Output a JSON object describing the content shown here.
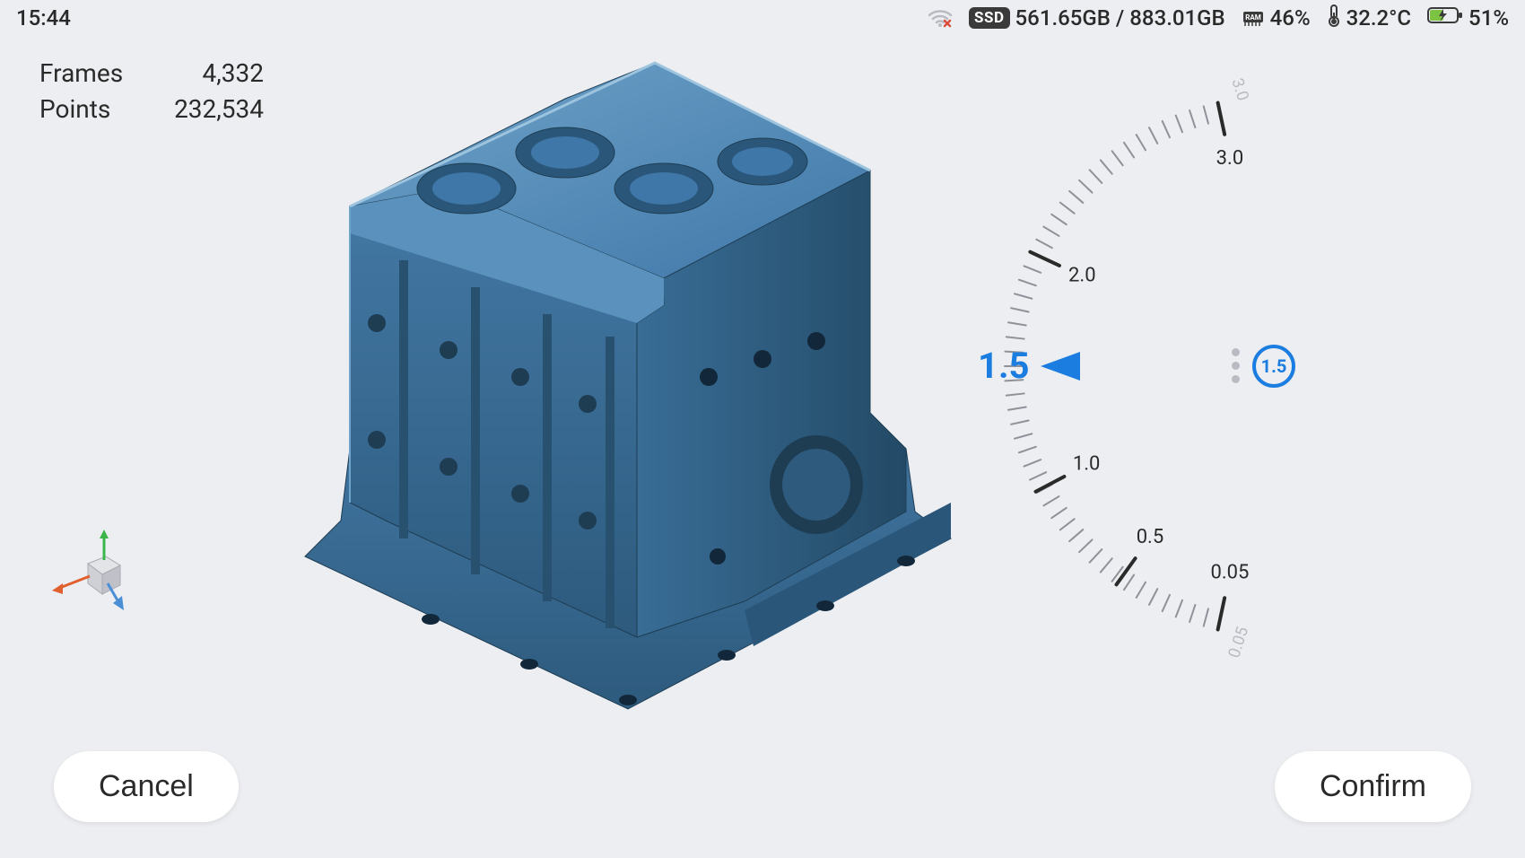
{
  "status_bar": {
    "time": "15:44",
    "wifi": {
      "connected": false,
      "icon": "wifi-off"
    },
    "ssd": {
      "used": "561.65GB",
      "total": "883.01GB",
      "separator": " / "
    },
    "ram": {
      "percent": "46%"
    },
    "temperature": "32.2°C",
    "battery": {
      "percent": "51%",
      "charging": true,
      "fill_color": "#7cc243"
    }
  },
  "scan_stats": {
    "frames": {
      "label": "Frames",
      "value": "4,332"
    },
    "points": {
      "label": "Points",
      "value": "232,534"
    }
  },
  "model": {
    "description": "engine-block-scan",
    "primary_color": "#3f77a8",
    "highlight_color": "#6fa3c9",
    "shadow_color": "#28516f"
  },
  "axis_gizmo": {
    "x_color": "#e06030",
    "y_color": "#3ab54a",
    "z_color": "#4a8fd6",
    "cube_face": "#d9dade",
    "cube_edge": "#a9abb2"
  },
  "dial": {
    "min": 0.05,
    "max": 3.0,
    "current": 1.5,
    "current_label": "1.5",
    "badge_label": "1.5",
    "major_ticks": [
      {
        "value": 3.0,
        "label": "3.0"
      },
      {
        "value": 2.0,
        "label": "2.0"
      },
      {
        "value": 1.0,
        "label": "1.0"
      },
      {
        "value": 0.5,
        "label": "0.5"
      },
      {
        "value": 0.05,
        "label": "0.05"
      }
    ],
    "minor_ticks_per_segment": 10,
    "accent_color": "#1b7de0",
    "tick_color": "#2a2a2a",
    "tick_minor_color": "#8f9299",
    "label_color": "#2a2a2a"
  },
  "buttons": {
    "cancel": "Cancel",
    "confirm": "Confirm"
  },
  "colors": {
    "background": "#edeef2",
    "text": "#2a2a2a",
    "button_bg": "#ffffff"
  }
}
